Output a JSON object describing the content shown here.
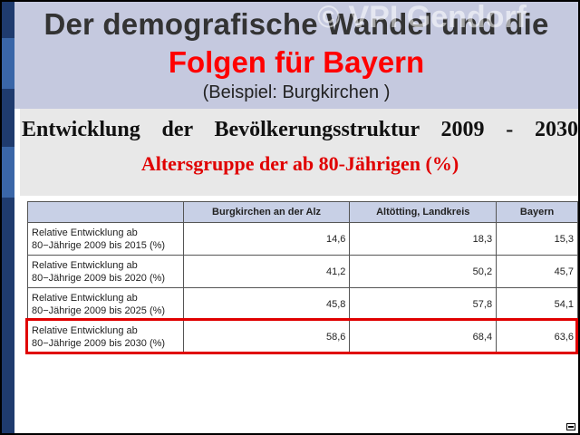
{
  "header": {
    "title_line1": "Der demografische Wandel und die",
    "title_line2": "Folgen für Bayern",
    "subtitle": "(Beispiel: Burgkirchen )",
    "watermark": "© VPI Gendorf"
  },
  "section": {
    "heading": "Entwicklung der Bevölkerungsstruktur 2009 - 2030",
    "subheading": "Altersgruppe der ab 80-Jährigen (%)"
  },
  "table": {
    "columns": [
      "",
      "Burgkirchen an der Alz",
      "Altötting, Landkreis",
      "Bayern"
    ],
    "rows": [
      {
        "label_line1": "Relative Entwicklung ab",
        "label_line2": "80−Jährige 2009 bis 2015 (%)",
        "values": [
          "14,6",
          "18,3",
          "15,3"
        ]
      },
      {
        "label_line1": "Relative Entwicklung ab",
        "label_line2": "80−Jährige 2009 bis 2020 (%)",
        "values": [
          "41,2",
          "50,2",
          "45,7"
        ]
      },
      {
        "label_line1": "Relative Entwicklung ab",
        "label_line2": "80−Jährige 2009 bis 2025 (%)",
        "values": [
          "45,8",
          "57,8",
          "54,1"
        ]
      },
      {
        "label_line1": "Relative Entwicklung ab",
        "label_line2": "80−Jährige 2009 bis 2030 (%)",
        "values": [
          "58,6",
          "68,4",
          "63,6"
        ]
      }
    ]
  },
  "colors": {
    "header_bg": "#c5c9df",
    "accent_red": "#e00000",
    "left_bar": "#1f3b6e"
  }
}
